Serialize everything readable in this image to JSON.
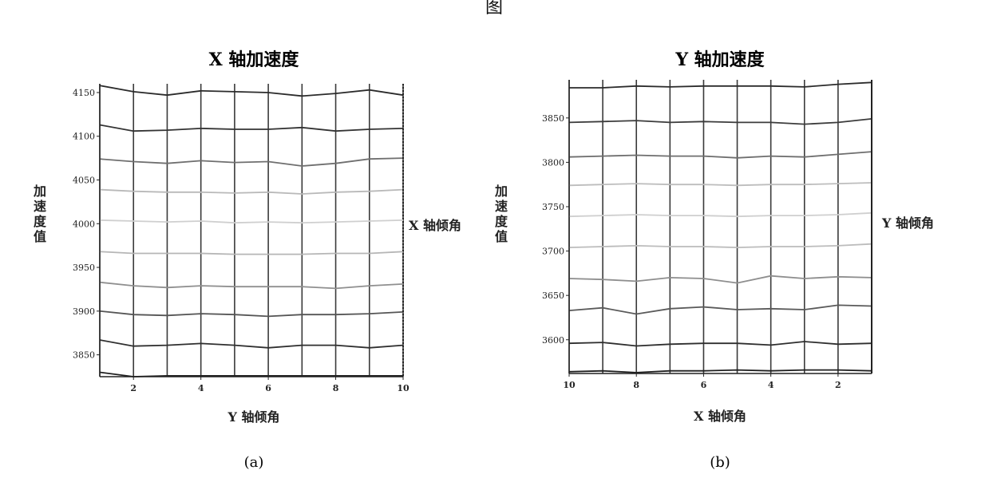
{
  "top_fragment": "图",
  "chart_data": [
    {
      "type": "line",
      "title": "X 轴加速度",
      "ylabel": "加速度值",
      "xlabel": "Y 轴倾角",
      "side_label": "X 轴倾角",
      "caption": "(a)",
      "x": [
        1,
        2,
        3,
        4,
        5,
        6,
        7,
        8,
        9,
        10
      ],
      "x_ticks": [
        2,
        4,
        6,
        8,
        10
      ],
      "y_ticks": [
        3850,
        3900,
        3950,
        4000,
        4050,
        4100,
        4150
      ],
      "xlim": [
        1,
        10
      ],
      "ylim": [
        3825,
        4160
      ],
      "grid": true,
      "series": [
        {
          "values": [
            4158,
            4151,
            4147,
            4152,
            4151,
            4150,
            4146,
            4149,
            4153,
            4147
          ],
          "color": "#2b2b2b"
        },
        {
          "values": [
            4113,
            4106,
            4107,
            4109,
            4108,
            4108,
            4110,
            4106,
            4108,
            4109
          ],
          "color": "#333333"
        },
        {
          "values": [
            4074,
            4071,
            4069,
            4072,
            4070,
            4071,
            4066,
            4069,
            4074,
            4075
          ],
          "color": "#6f6f6f"
        },
        {
          "values": [
            4039,
            4037,
            4036,
            4036,
            4035,
            4036,
            4034,
            4036,
            4037,
            4039
          ],
          "color": "#b9b9b9"
        },
        {
          "values": [
            4004,
            4003,
            4002,
            4003,
            4001,
            4002,
            4001,
            4002,
            4003,
            4004
          ],
          "color": "#cfcfcf"
        },
        {
          "values": [
            3968,
            3966,
            3966,
            3966,
            3965,
            3965,
            3965,
            3966,
            3966,
            3968
          ],
          "color": "#b6b6b6"
        },
        {
          "values": [
            3933,
            3929,
            3927,
            3929,
            3928,
            3928,
            3928,
            3926,
            3929,
            3931
          ],
          "color": "#8f8f8f"
        },
        {
          "values": [
            3900,
            3896,
            3895,
            3897,
            3896,
            3894,
            3896,
            3896,
            3897,
            3899
          ],
          "color": "#555555"
        },
        {
          "values": [
            3867,
            3860,
            3861,
            3863,
            3861,
            3858,
            3861,
            3861,
            3858,
            3861
          ],
          "color": "#2f2f2f"
        },
        {
          "values": [
            3830,
            3825,
            3826,
            3826,
            3826,
            3826,
            3826,
            3826,
            3826,
            3826
          ],
          "color": "#1f1f1f"
        }
      ]
    },
    {
      "type": "line",
      "title": "Y 轴加速度",
      "ylabel": "加速度值",
      "xlabel": "X 轴倾角",
      "side_label": "Y 轴倾角",
      "caption": "(b)",
      "x": [
        10,
        9,
        8,
        7,
        6,
        5,
        4,
        3,
        2,
        1
      ],
      "x_ticks": [
        10,
        8,
        6,
        4,
        2
      ],
      "y_ticks": [
        3600,
        3650,
        3700,
        3750,
        3800,
        3850
      ],
      "xlim": [
        10,
        1
      ],
      "ylim": [
        3562,
        3893
      ],
      "grid": true,
      "series": [
        {
          "values": [
            3884,
            3884,
            3886,
            3885,
            3886,
            3886,
            3886,
            3885,
            3888,
            3890
          ],
          "color": "#2b2b2b"
        },
        {
          "values": [
            3845,
            3846,
            3847,
            3845,
            3846,
            3845,
            3845,
            3843,
            3845,
            3849
          ],
          "color": "#3c3c3c"
        },
        {
          "values": [
            3806,
            3807,
            3808,
            3807,
            3807,
            3805,
            3807,
            3806,
            3809,
            3812
          ],
          "color": "#6e6e6e"
        },
        {
          "values": [
            3774,
            3775,
            3776,
            3775,
            3775,
            3774,
            3775,
            3775,
            3776,
            3777
          ],
          "color": "#bdbdbd"
        },
        {
          "values": [
            3739,
            3740,
            3741,
            3740,
            3740,
            3739,
            3740,
            3740,
            3741,
            3743
          ],
          "color": "#cfcfcf"
        },
        {
          "values": [
            3704,
            3705,
            3706,
            3705,
            3705,
            3704,
            3705,
            3705,
            3706,
            3708
          ],
          "color": "#bcbcbc"
        },
        {
          "values": [
            3669,
            3668,
            3666,
            3670,
            3669,
            3664,
            3672,
            3669,
            3671,
            3670
          ],
          "color": "#8e8e8e"
        },
        {
          "values": [
            3633,
            3636,
            3629,
            3635,
            3637,
            3634,
            3635,
            3634,
            3639,
            3638
          ],
          "color": "#5a5a5a"
        },
        {
          "values": [
            3596,
            3597,
            3593,
            3595,
            3596,
            3596,
            3594,
            3598,
            3595,
            3596
          ],
          "color": "#2e2e2e"
        },
        {
          "values": [
            3564,
            3565,
            3563,
            3565,
            3565,
            3566,
            3565,
            3566,
            3566,
            3565
          ],
          "color": "#1f1f1f"
        }
      ]
    }
  ]
}
